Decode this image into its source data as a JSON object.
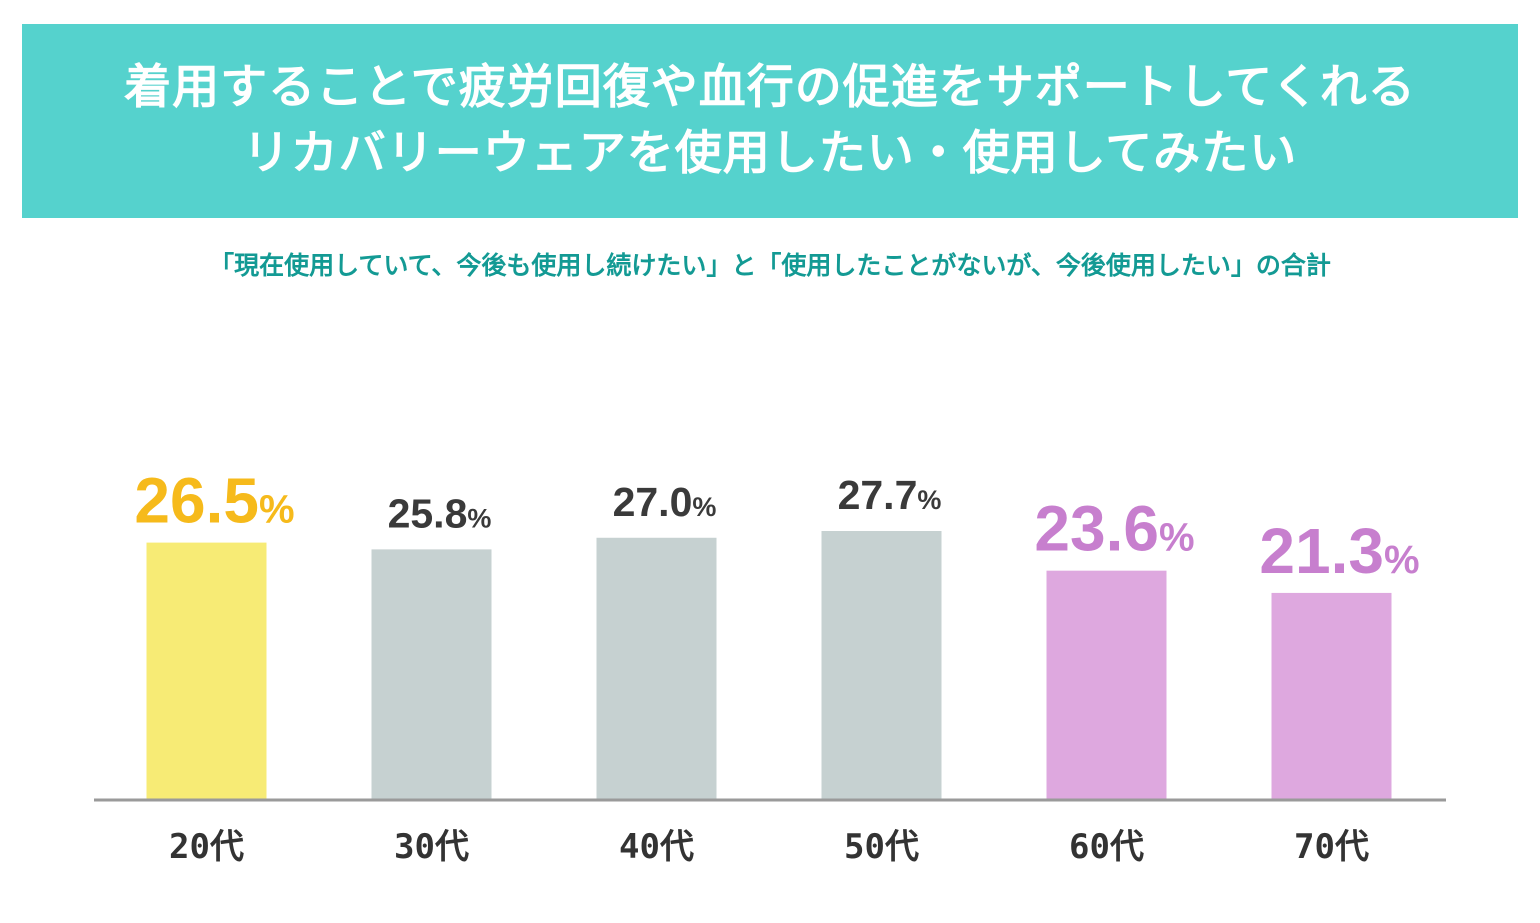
{
  "header": {
    "title_line1": "着用することで疲労回復や血行の促進をサポートしてくれる",
    "title_line2": "リカバリーウェアを使用したい・使用してみたい",
    "background": "#55d2cd",
    "text_color": "#ffffff"
  },
  "subtitle": "「現在使用していて、今後も使用し続けたい」と「使用したことがないが、今後使用したい」の合計",
  "chart_data": {
    "type": "bar",
    "categories": [
      "20代",
      "30代",
      "40代",
      "50代",
      "60代",
      "70代"
    ],
    "values": [
      26.5,
      25.8,
      27.0,
      27.7,
      23.6,
      21.3
    ],
    "value_labels": [
      "26.5",
      "25.8",
      "27.0",
      "27.7",
      "23.6",
      "21.3"
    ],
    "unit": "%",
    "bar_colors": [
      "#f7eb75",
      "#c6d1d1",
      "#c6d1d1",
      "#c6d1d1",
      "#dea8df",
      "#dea8df"
    ],
    "label_colors": [
      "#f6ba1b",
      "#3a3a3a",
      "#3a3a3a",
      "#3a3a3a",
      "#c77fce",
      "#c77fce"
    ],
    "highlight": [
      true,
      false,
      false,
      false,
      true,
      true
    ],
    "axis_color": "#9a9a9a",
    "ylim": [
      0,
      27.7
    ],
    "grid": false,
    "legend": "none"
  }
}
